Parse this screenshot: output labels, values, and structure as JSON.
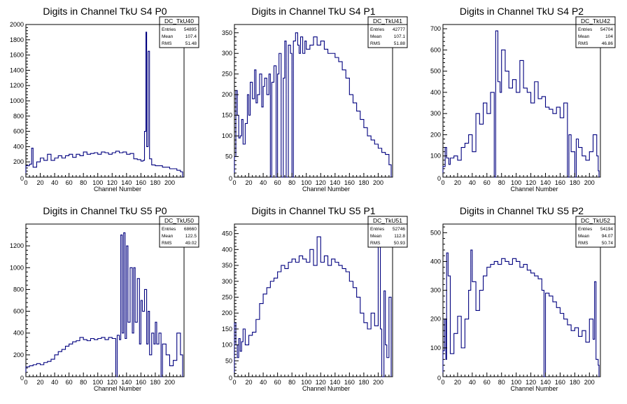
{
  "colors": {
    "histogram": "#00007f",
    "frame": "#000000",
    "background": "#ffffff"
  },
  "chart_data": [
    {
      "type": "histogram",
      "title": "Digits in Channel TkU S4 P0",
      "xlabel": "Channel Number",
      "ylabel": "",
      "xlim": [
        0,
        220
      ],
      "ylim": [
        0,
        2000
      ],
      "xticks": [
        0,
        20,
        40,
        60,
        80,
        100,
        120,
        140,
        160,
        180,
        200
      ],
      "yticks": [
        200,
        400,
        600,
        800,
        1000,
        1200,
        1400,
        1600,
        1800,
        2000
      ],
      "stats": {
        "name": "DC_TkU40",
        "entries": "54895",
        "mean": "107.4",
        "rms": "51.48"
      },
      "points": [
        [
          0,
          150
        ],
        [
          5,
          170
        ],
        [
          8,
          380
        ],
        [
          10,
          130
        ],
        [
          15,
          200
        ],
        [
          20,
          250
        ],
        [
          25,
          220
        ],
        [
          30,
          300
        ],
        [
          35,
          220
        ],
        [
          40,
          250
        ],
        [
          45,
          280
        ],
        [
          50,
          250
        ],
        [
          55,
          280
        ],
        [
          60,
          300
        ],
        [
          65,
          260
        ],
        [
          70,
          300
        ],
        [
          75,
          280
        ],
        [
          80,
          330
        ],
        [
          85,
          300
        ],
        [
          90,
          310
        ],
        [
          95,
          320
        ],
        [
          100,
          300
        ],
        [
          105,
          330
        ],
        [
          110,
          320
        ],
        [
          115,
          300
        ],
        [
          120,
          320
        ],
        [
          125,
          340
        ],
        [
          130,
          320
        ],
        [
          135,
          330
        ],
        [
          140,
          300
        ],
        [
          145,
          310
        ],
        [
          150,
          240
        ],
        [
          155,
          230
        ],
        [
          160,
          210
        ],
        [
          163,
          220
        ],
        [
          165,
          600
        ],
        [
          167,
          1900
        ],
        [
          168,
          400
        ],
        [
          170,
          1650
        ],
        [
          172,
          240
        ],
        [
          175,
          160
        ],
        [
          180,
          150
        ],
        [
          190,
          130
        ],
        [
          200,
          110
        ],
        [
          210,
          90
        ],
        [
          215,
          70
        ]
      ]
    },
    {
      "type": "histogram",
      "title": "Digits in Channel TkU S4 P1",
      "xlabel": "Channel Number",
      "ylabel": "",
      "xlim": [
        0,
        220
      ],
      "ylim": [
        0,
        370
      ],
      "xticks": [
        0,
        20,
        40,
        60,
        80,
        100,
        120,
        140,
        160,
        180,
        200
      ],
      "yticks": [
        50,
        100,
        150,
        200,
        250,
        300,
        350
      ],
      "stats": {
        "name": "DC_TkU41",
        "entries": "42777",
        "mean": "107.1",
        "rms": "51.88"
      },
      "points": [
        [
          0,
          50
        ],
        [
          2,
          210
        ],
        [
          4,
          150
        ],
        [
          6,
          95
        ],
        [
          8,
          100
        ],
        [
          10,
          140
        ],
        [
          12,
          80
        ],
        [
          15,
          130
        ],
        [
          18,
          200
        ],
        [
          20,
          150
        ],
        [
          22,
          230
        ],
        [
          25,
          190
        ],
        [
          28,
          260
        ],
        [
          30,
          180
        ],
        [
          32,
          200
        ],
        [
          35,
          250
        ],
        [
          38,
          170
        ],
        [
          40,
          220
        ],
        [
          42,
          240
        ],
        [
          45,
          200
        ],
        [
          48,
          250
        ],
        [
          50,
          0
        ],
        [
          52,
          230
        ],
        [
          55,
          270
        ],
        [
          58,
          0
        ],
        [
          60,
          250
        ],
        [
          62,
          300
        ],
        [
          65,
          0
        ],
        [
          68,
          240
        ],
        [
          70,
          330
        ],
        [
          72,
          0
        ],
        [
          75,
          320
        ],
        [
          78,
          300
        ],
        [
          80,
          0
        ],
        [
          82,
          330
        ],
        [
          85,
          350
        ],
        [
          88,
          320
        ],
        [
          90,
          300
        ],
        [
          92,
          340
        ],
        [
          95,
          300
        ],
        [
          98,
          330
        ],
        [
          100,
          310
        ],
        [
          105,
          320
        ],
        [
          110,
          340
        ],
        [
          115,
          320
        ],
        [
          120,
          330
        ],
        [
          125,
          310
        ],
        [
          130,
          300
        ],
        [
          135,
          300
        ],
        [
          140,
          290
        ],
        [
          145,
          280
        ],
        [
          150,
          260
        ],
        [
          155,
          240
        ],
        [
          160,
          200
        ],
        [
          165,
          180
        ],
        [
          170,
          160
        ],
        [
          175,
          140
        ],
        [
          180,
          120
        ],
        [
          185,
          100
        ],
        [
          190,
          90
        ],
        [
          195,
          80
        ],
        [
          200,
          70
        ],
        [
          205,
          60
        ],
        [
          210,
          55
        ],
        [
          215,
          30
        ]
      ]
    },
    {
      "type": "histogram",
      "title": "Digits in Channel TkU S4 P2",
      "xlabel": "Channel Number",
      "ylabel": "",
      "xlim": [
        0,
        215
      ],
      "ylim": [
        0,
        720
      ],
      "xticks": [
        0,
        20,
        40,
        60,
        80,
        100,
        120,
        140,
        160,
        180,
        200
      ],
      "yticks": [
        100,
        200,
        300,
        400,
        500,
        600,
        700
      ],
      "stats": {
        "name": "DC_TkU42",
        "entries": "54704",
        "mean": "104",
        "rms": "46.86"
      },
      "points": [
        [
          0,
          50
        ],
        [
          3,
          140
        ],
        [
          5,
          90
        ],
        [
          8,
          60
        ],
        [
          10,
          90
        ],
        [
          15,
          100
        ],
        [
          20,
          80
        ],
        [
          25,
          140
        ],
        [
          30,
          160
        ],
        [
          35,
          200
        ],
        [
          40,
          120
        ],
        [
          45,
          300
        ],
        [
          50,
          250
        ],
        [
          55,
          350
        ],
        [
          60,
          300
        ],
        [
          65,
          400
        ],
        [
          70,
          0
        ],
        [
          72,
          690
        ],
        [
          75,
          450
        ],
        [
          78,
          400
        ],
        [
          80,
          600
        ],
        [
          85,
          500
        ],
        [
          90,
          420
        ],
        [
          95,
          460
        ],
        [
          100,
          400
        ],
        [
          105,
          550
        ],
        [
          110,
          420
        ],
        [
          115,
          400
        ],
        [
          120,
          350
        ],
        [
          125,
          450
        ],
        [
          130,
          370
        ],
        [
          135,
          380
        ],
        [
          140,
          330
        ],
        [
          145,
          320
        ],
        [
          150,
          300
        ],
        [
          155,
          330
        ],
        [
          160,
          280
        ],
        [
          165,
          350
        ],
        [
          170,
          0
        ],
        [
          172,
          200
        ],
        [
          175,
          120
        ],
        [
          180,
          0
        ],
        [
          182,
          180
        ],
        [
          185,
          140
        ],
        [
          190,
          100
        ],
        [
          195,
          80
        ],
        [
          200,
          120
        ],
        [
          205,
          200
        ],
        [
          210,
          100
        ],
        [
          212,
          30
        ]
      ]
    },
    {
      "type": "histogram",
      "title": "Digits in Channel TkU S5 P0",
      "xlabel": "Channel Number",
      "ylabel": "",
      "xlim": [
        0,
        220
      ],
      "ylim": [
        0,
        1400
      ],
      "xticks": [
        0,
        20,
        40,
        60,
        80,
        100,
        120,
        140,
        160,
        180,
        200
      ],
      "yticks": [
        200,
        400,
        600,
        800,
        1000,
        1200
      ],
      "stats": {
        "name": "DC_TkU50",
        "entries": "68660",
        "mean": "122.5",
        "rms": "49.02"
      },
      "points": [
        [
          0,
          90
        ],
        [
          5,
          100
        ],
        [
          10,
          110
        ],
        [
          15,
          120
        ],
        [
          20,
          110
        ],
        [
          25,
          130
        ],
        [
          30,
          140
        ],
        [
          35,
          160
        ],
        [
          40,
          200
        ],
        [
          45,
          230
        ],
        [
          50,
          250
        ],
        [
          55,
          280
        ],
        [
          60,
          300
        ],
        [
          65,
          320
        ],
        [
          70,
          330
        ],
        [
          75,
          360
        ],
        [
          80,
          340
        ],
        [
          85,
          330
        ],
        [
          90,
          350
        ],
        [
          95,
          340
        ],
        [
          100,
          350
        ],
        [
          105,
          360
        ],
        [
          110,
          340
        ],
        [
          115,
          360
        ],
        [
          120,
          350
        ],
        [
          125,
          0
        ],
        [
          127,
          380
        ],
        [
          130,
          340
        ],
        [
          132,
          1300
        ],
        [
          134,
          400
        ],
        [
          136,
          1320
        ],
        [
          138,
          350
        ],
        [
          140,
          1200
        ],
        [
          142,
          500
        ],
        [
          145,
          1000
        ],
        [
          148,
          400
        ],
        [
          150,
          1000
        ],
        [
          152,
          500
        ],
        [
          155,
          900
        ],
        [
          158,
          300
        ],
        [
          160,
          700
        ],
        [
          162,
          600
        ],
        [
          165,
          800
        ],
        [
          168,
          300
        ],
        [
          170,
          600
        ],
        [
          172,
          200
        ],
        [
          175,
          400
        ],
        [
          178,
          300
        ],
        [
          180,
          500
        ],
        [
          182,
          300
        ],
        [
          185,
          400
        ],
        [
          188,
          0
        ],
        [
          190,
          300
        ],
        [
          195,
          200
        ],
        [
          200,
          100
        ],
        [
          205,
          150
        ],
        [
          210,
          400
        ],
        [
          215,
          200
        ]
      ]
    },
    {
      "type": "histogram",
      "title": "Digits in Channel TkU S5 P1",
      "xlabel": "Channel Number",
      "ylabel": "",
      "xlim": [
        0,
        220
      ],
      "ylim": [
        0,
        480
      ],
      "xticks": [
        0,
        20,
        40,
        60,
        80,
        100,
        120,
        140,
        160,
        180,
        200
      ],
      "yticks": [
        50,
        100,
        150,
        200,
        250,
        300,
        350,
        400,
        450
      ],
      "stats": {
        "name": "DC_TkU51",
        "entries": "52746",
        "mean": "112.8",
        "rms": "50.93"
      },
      "points": [
        [
          0,
          170
        ],
        [
          2,
          100
        ],
        [
          4,
          60
        ],
        [
          6,
          120
        ],
        [
          8,
          80
        ],
        [
          10,
          110
        ],
        [
          12,
          150
        ],
        [
          15,
          100
        ],
        [
          20,
          130
        ],
        [
          25,
          140
        ],
        [
          30,
          180
        ],
        [
          35,
          230
        ],
        [
          40,
          260
        ],
        [
          45,
          280
        ],
        [
          50,
          300
        ],
        [
          55,
          310
        ],
        [
          60,
          330
        ],
        [
          65,
          350
        ],
        [
          70,
          340
        ],
        [
          75,
          360
        ],
        [
          80,
          370
        ],
        [
          85,
          360
        ],
        [
          90,
          380
        ],
        [
          95,
          370
        ],
        [
          100,
          360
        ],
        [
          105,
          400
        ],
        [
          110,
          350
        ],
        [
          115,
          440
        ],
        [
          120,
          360
        ],
        [
          125,
          380
        ],
        [
          130,
          350
        ],
        [
          135,
          370
        ],
        [
          140,
          360
        ],
        [
          145,
          350
        ],
        [
          150,
          340
        ],
        [
          155,
          330
        ],
        [
          160,
          300
        ],
        [
          165,
          280
        ],
        [
          170,
          250
        ],
        [
          175,
          200
        ],
        [
          180,
          170
        ],
        [
          185,
          150
        ],
        [
          190,
          200
        ],
        [
          195,
          160
        ],
        [
          200,
          430
        ],
        [
          203,
          150
        ],
        [
          205,
          0
        ],
        [
          208,
          270
        ],
        [
          210,
          100
        ],
        [
          212,
          60
        ],
        [
          215,
          250
        ]
      ]
    },
    {
      "type": "histogram",
      "title": "Digits in Channel TkU S5 P2",
      "xlabel": "Channel Number",
      "ylabel": "",
      "xlim": [
        0,
        215
      ],
      "ylim": [
        0,
        530
      ],
      "xticks": [
        0,
        20,
        40,
        60,
        80,
        100,
        120,
        140,
        160,
        180,
        200
      ],
      "yticks": [
        100,
        200,
        300,
        400,
        500
      ],
      "stats": {
        "name": "DC_TkU52",
        "entries": "54194",
        "mean": "94.07",
        "rms": "50.74"
      },
      "points": [
        [
          0,
          90
        ],
        [
          2,
          200
        ],
        [
          4,
          60
        ],
        [
          5,
          430
        ],
        [
          7,
          350
        ],
        [
          10,
          80
        ],
        [
          15,
          150
        ],
        [
          20,
          210
        ],
        [
          25,
          100
        ],
        [
          30,
          200
        ],
        [
          35,
          300
        ],
        [
          38,
          440
        ],
        [
          40,
          330
        ],
        [
          45,
          230
        ],
        [
          50,
          300
        ],
        [
          55,
          350
        ],
        [
          60,
          380
        ],
        [
          65,
          390
        ],
        [
          70,
          400
        ],
        [
          75,
          390
        ],
        [
          80,
          410
        ],
        [
          85,
          400
        ],
        [
          90,
          390
        ],
        [
          95,
          410
        ],
        [
          100,
          400
        ],
        [
          105,
          380
        ],
        [
          110,
          390
        ],
        [
          115,
          370
        ],
        [
          120,
          360
        ],
        [
          125,
          350
        ],
        [
          130,
          340
        ],
        [
          135,
          300
        ],
        [
          138,
          0
        ],
        [
          140,
          290
        ],
        [
          145,
          280
        ],
        [
          150,
          260
        ],
        [
          155,
          240
        ],
        [
          160,
          220
        ],
        [
          165,
          200
        ],
        [
          170,
          180
        ],
        [
          175,
          160
        ],
        [
          180,
          170
        ],
        [
          185,
          140
        ],
        [
          190,
          160
        ],
        [
          195,
          120
        ],
        [
          200,
          200
        ],
        [
          205,
          130
        ],
        [
          207,
          330
        ],
        [
          209,
          60
        ],
        [
          212,
          40
        ]
      ]
    }
  ]
}
